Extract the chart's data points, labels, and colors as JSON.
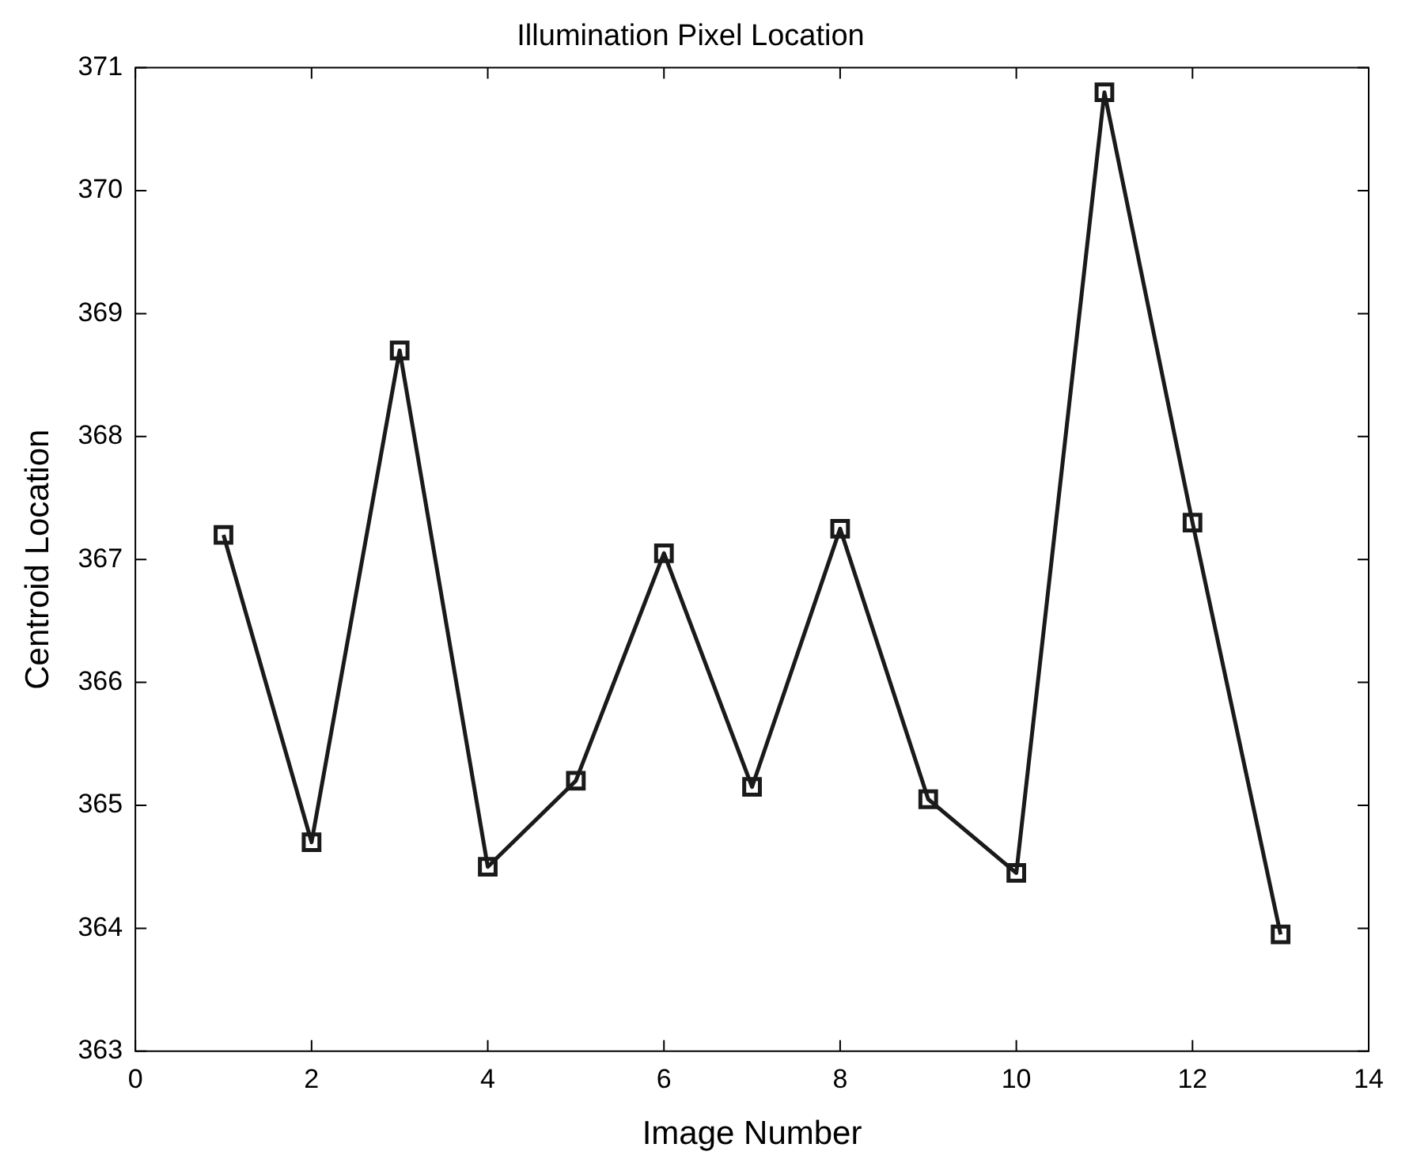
{
  "chart_data": {
    "type": "line",
    "title": "Illumination Pixel Location",
    "xlabel": "Image Number",
    "ylabel": "Centroid Location",
    "x": [
      1,
      2,
      3,
      4,
      5,
      6,
      7,
      8,
      9,
      10,
      11,
      12,
      13
    ],
    "series": [
      {
        "color": "#1a1a1a",
        "values": [
          367.2,
          364.7,
          368.7,
          364.5,
          365.2,
          367.05,
          365.15,
          367.25,
          365.05,
          364.45,
          370.8,
          367.3,
          363.95
        ]
      }
    ],
    "xlim": [
      0,
      14
    ],
    "xticks": [
      0,
      2,
      4,
      6,
      8,
      10,
      12,
      14
    ],
    "ylim": [
      363,
      371
    ],
    "yticks": [
      363,
      364,
      365,
      366,
      367,
      368,
      369,
      370,
      371
    ],
    "grid": false,
    "legend": false,
    "marker": "square",
    "line_style": "solid"
  }
}
